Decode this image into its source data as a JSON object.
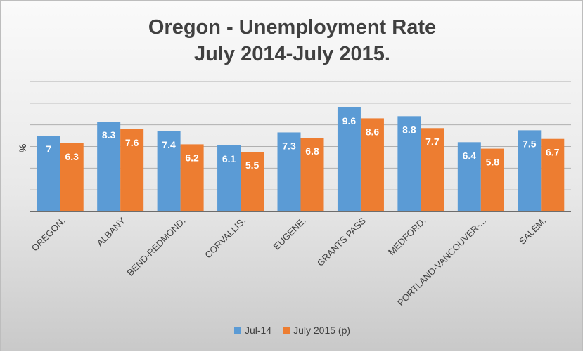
{
  "chart_data": {
    "type": "bar",
    "title_line1": "Oregon - Unemployment Rate",
    "title_line2": "July 2014-July 2015.",
    "ylabel": "%",
    "xlabel": "",
    "ylim": [
      0,
      12
    ],
    "grid": true,
    "legend_position": "bottom",
    "categories": [
      "OREGON.",
      "ALBANY",
      "BEND-REDMOND.",
      "CORVALLIS.",
      "EUGENE.",
      "GRANTS PASS",
      "MEDFORD.",
      "PORTLAND-VANCOUVER-...",
      "SALEM."
    ],
    "series": [
      {
        "name": "Jul-14",
        "color": "#5b9bd5",
        "values": [
          7,
          8.3,
          7.4,
          6.1,
          7.3,
          9.6,
          8.8,
          6.4,
          7.5
        ]
      },
      {
        "name": "July 2015 (p)",
        "color": "#ed7d31",
        "values": [
          6.3,
          7.6,
          6.2,
          5.5,
          6.8,
          8.6,
          7.7,
          5.8,
          6.7
        ]
      }
    ]
  }
}
